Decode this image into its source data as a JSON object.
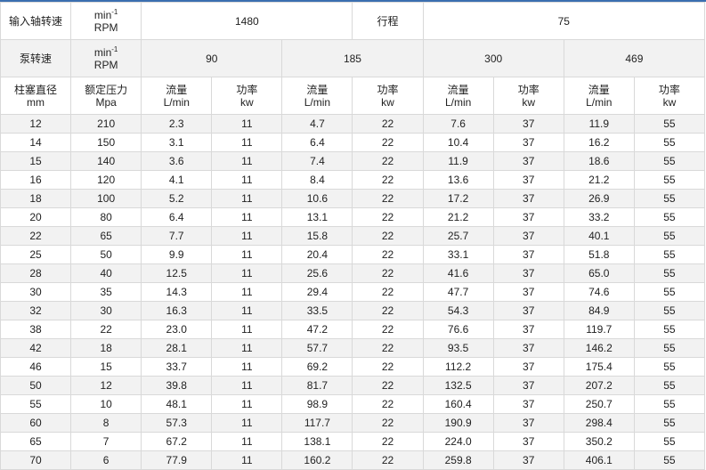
{
  "header": {
    "input_speed_label": "输入轴转速",
    "unit_min": "min",
    "unit_exp": "-1",
    "unit_rpm": "RPM",
    "input_speed_value": "1480",
    "stroke_label": "行程",
    "stroke_value": "75",
    "pump_speed_label": "泵转速",
    "pump_speeds": [
      "90",
      "185",
      "300",
      "469"
    ],
    "plunger_label": "柱塞直径",
    "plunger_unit": "mm",
    "pressure_label": "额定压力",
    "pressure_unit": "Mpa",
    "flow_label": "流量",
    "flow_unit": "L/min",
    "power_label": "功率",
    "power_unit": "kw"
  },
  "rows": [
    [
      "12",
      "210",
      "2.3",
      "11",
      "4.7",
      "22",
      "7.6",
      "37",
      "11.9",
      "55"
    ],
    [
      "14",
      "150",
      "3.1",
      "11",
      "6.4",
      "22",
      "10.4",
      "37",
      "16.2",
      "55"
    ],
    [
      "15",
      "140",
      "3.6",
      "11",
      "7.4",
      "22",
      "11.9",
      "37",
      "18.6",
      "55"
    ],
    [
      "16",
      "120",
      "4.1",
      "11",
      "8.4",
      "22",
      "13.6",
      "37",
      "21.2",
      "55"
    ],
    [
      "18",
      "100",
      "5.2",
      "11",
      "10.6",
      "22",
      "17.2",
      "37",
      "26.9",
      "55"
    ],
    [
      "20",
      "80",
      "6.4",
      "11",
      "13.1",
      "22",
      "21.2",
      "37",
      "33.2",
      "55"
    ],
    [
      "22",
      "65",
      "7.7",
      "11",
      "15.8",
      "22",
      "25.7",
      "37",
      "40.1",
      "55"
    ],
    [
      "25",
      "50",
      "9.9",
      "11",
      "20.4",
      "22",
      "33.1",
      "37",
      "51.8",
      "55"
    ],
    [
      "28",
      "40",
      "12.5",
      "11",
      "25.6",
      "22",
      "41.6",
      "37",
      "65.0",
      "55"
    ],
    [
      "30",
      "35",
      "14.3",
      "11",
      "29.4",
      "22",
      "47.7",
      "37",
      "74.6",
      "55"
    ],
    [
      "32",
      "30",
      "16.3",
      "11",
      "33.5",
      "22",
      "54.3",
      "37",
      "84.9",
      "55"
    ],
    [
      "38",
      "22",
      "23.0",
      "11",
      "47.2",
      "22",
      "76.6",
      "37",
      "119.7",
      "55"
    ],
    [
      "42",
      "18",
      "28.1",
      "11",
      "57.7",
      "22",
      "93.5",
      "37",
      "146.2",
      "55"
    ],
    [
      "46",
      "15",
      "33.7",
      "11",
      "69.2",
      "22",
      "112.2",
      "37",
      "175.4",
      "55"
    ],
    [
      "50",
      "12",
      "39.8",
      "11",
      "81.7",
      "22",
      "132.5",
      "37",
      "207.2",
      "55"
    ],
    [
      "55",
      "10",
      "48.1",
      "11",
      "98.9",
      "22",
      "160.4",
      "37",
      "250.7",
      "55"
    ],
    [
      "60",
      "8",
      "57.3",
      "11",
      "117.7",
      "22",
      "190.9",
      "37",
      "298.4",
      "55"
    ],
    [
      "65",
      "7",
      "67.2",
      "11",
      "138.1",
      "22",
      "224.0",
      "37",
      "350.2",
      "55"
    ],
    [
      "70",
      "6",
      "77.9",
      "11",
      "160.2",
      "22",
      "259.8",
      "37",
      "406.1",
      "55"
    ]
  ]
}
